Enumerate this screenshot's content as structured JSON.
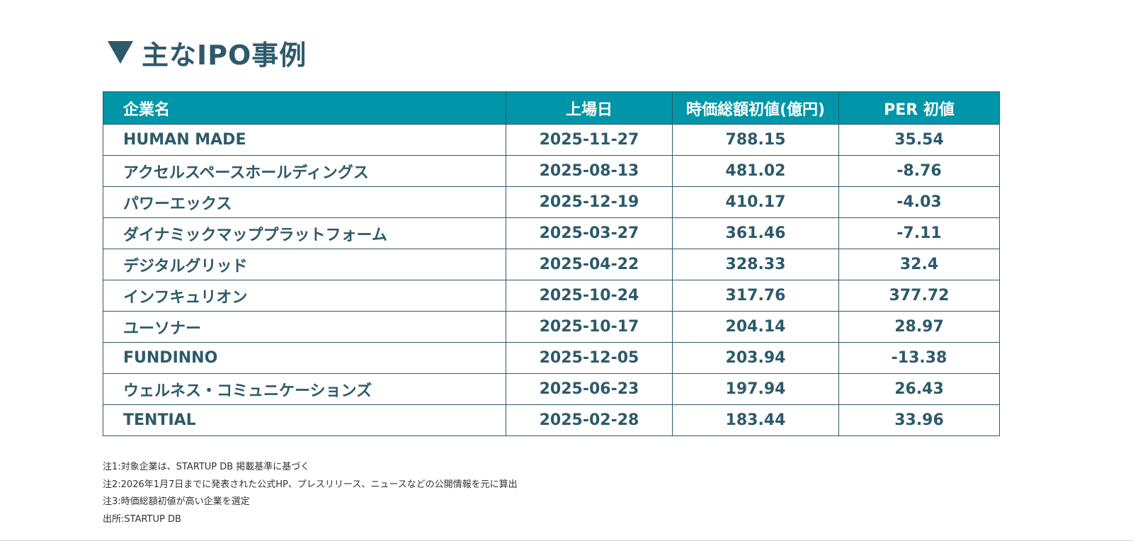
{
  "title": "主なIPO事例",
  "table": {
    "headers": [
      "企業名",
      "上場日",
      "時価総額初値(億円)",
      "PER 初値"
    ],
    "rows": [
      [
        "HUMAN MADE",
        "2025-11-27",
        "788.15",
        "35.54"
      ],
      [
        "アクセルスペースホールディングス",
        "2025-08-13",
        "481.02",
        "-8.76"
      ],
      [
        "パワーエックス",
        "2025-12-19",
        "410.17",
        "-4.03"
      ],
      [
        "ダイナミックマッププラットフォーム",
        "2025-03-27",
        "361.46",
        "-7.11"
      ],
      [
        "デジタルグリッド",
        "2025-04-22",
        "328.33",
        "32.4"
      ],
      [
        "インフキュリオン",
        "2025-10-24",
        "317.76",
        "377.72"
      ],
      [
        "ユーソナー",
        "2025-10-17",
        "204.14",
        "28.97"
      ],
      [
        "FUNDINNO",
        "2025-12-05",
        "203.94",
        "-13.38"
      ],
      [
        "ウェルネス・コミュニケーションズ",
        "2025-06-23",
        "197.94",
        "26.43"
      ],
      [
        "TENTIAL",
        "2025-02-28",
        "183.44",
        "33.96"
      ]
    ]
  },
  "notes": [
    "注1:対象企業は、STARTUP DB 掲載基準に基づく",
    "注2:2026年1月7日までに発表された公式HP、プレスリリース、ニュースなどの公開情報を元に算出",
    "注3:時価総額初値が高い企業を選定",
    "出所:STARTUP DB"
  ],
  "colors": {
    "header_bg": "#0095a8",
    "text": "#2d5a6a",
    "border": "#2d5a6a"
  }
}
